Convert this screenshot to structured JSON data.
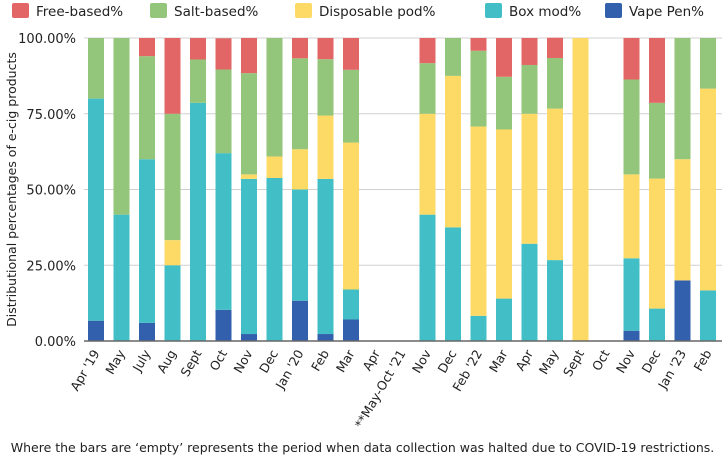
{
  "chart_data": {
    "type": "bar",
    "stacked": true,
    "title": "",
    "xlabel": "",
    "ylabel": "Distributional percentages of e-cig products",
    "ylim": [
      0,
      100
    ],
    "yticks": [
      "0.00%",
      "25.00%",
      "50.00%",
      "75.00%",
      "100.00%"
    ],
    "legend_position": "top",
    "categories": [
      "Apr '19",
      "May",
      "July",
      "Aug",
      "Sept",
      "Oct",
      "Nov",
      "Dec",
      "Jan '20",
      "Feb",
      "Mar",
      "Apr",
      "**May-Oct '21",
      "Nov",
      "Dec",
      "Feb '22",
      "Mar",
      "Apr",
      "May",
      "Sept",
      "Oct",
      "Nov",
      "Dec",
      "Jan '23",
      "Feb"
    ],
    "series": [
      {
        "name": "Vape Pen%",
        "color": "#3260ad",
        "values": [
          6.7,
          0,
          6,
          0,
          0,
          10.3,
          2.3,
          0,
          13.3,
          2.3,
          7.1,
          0,
          0,
          0,
          0,
          0,
          0,
          0,
          0,
          0,
          0,
          3.4,
          0,
          20,
          0
        ]
      },
      {
        "name": "Box mod%",
        "color": "#42bfc6",
        "values": [
          73.3,
          41.7,
          54,
          25,
          78.6,
          51.7,
          51.2,
          53.8,
          36.7,
          51.2,
          9.9,
          0,
          0,
          41.7,
          37.5,
          8.3,
          14,
          32.1,
          26.7,
          0,
          0,
          23.9,
          10.7,
          0,
          16.7
        ]
      },
      {
        "name": "Disposable pod%",
        "color": "#fdd966",
        "values": [
          0,
          0,
          0,
          8.3,
          0,
          0,
          1.5,
          7.1,
          13.3,
          20.9,
          48.5,
          0,
          0,
          33.3,
          50,
          62.5,
          55.8,
          42.9,
          50,
          100,
          0,
          27.7,
          42.9,
          40,
          66.6
        ]
      },
      {
        "name": "Salt-based%",
        "color": "#93c67a",
        "values": [
          20,
          58.3,
          34,
          41.7,
          14.3,
          27.6,
          33.4,
          39.1,
          30,
          18.6,
          24,
          0,
          0,
          16.7,
          12.5,
          25,
          17.4,
          16.1,
          16.7,
          0,
          0,
          31.3,
          25,
          40,
          16.7
        ]
      },
      {
        "name": "Free-based%",
        "color": "#e36666",
        "values": [
          0,
          0,
          6,
          25,
          7.1,
          10.3,
          11.6,
          0,
          6.7,
          7,
          10.5,
          0,
          0,
          8.3,
          0,
          4.2,
          12.8,
          8.9,
          6.7,
          0,
          0,
          13.7,
          21.4,
          0,
          0
        ]
      }
    ],
    "legend_order": [
      "Free-based%",
      "Salt-based%",
      "Disposable pod%",
      "Box mod%",
      "Vape Pen%"
    ]
  },
  "caption": "Where the bars are ‘empty’ represents the period when data collection was halted due to COVID-19 restrictions."
}
